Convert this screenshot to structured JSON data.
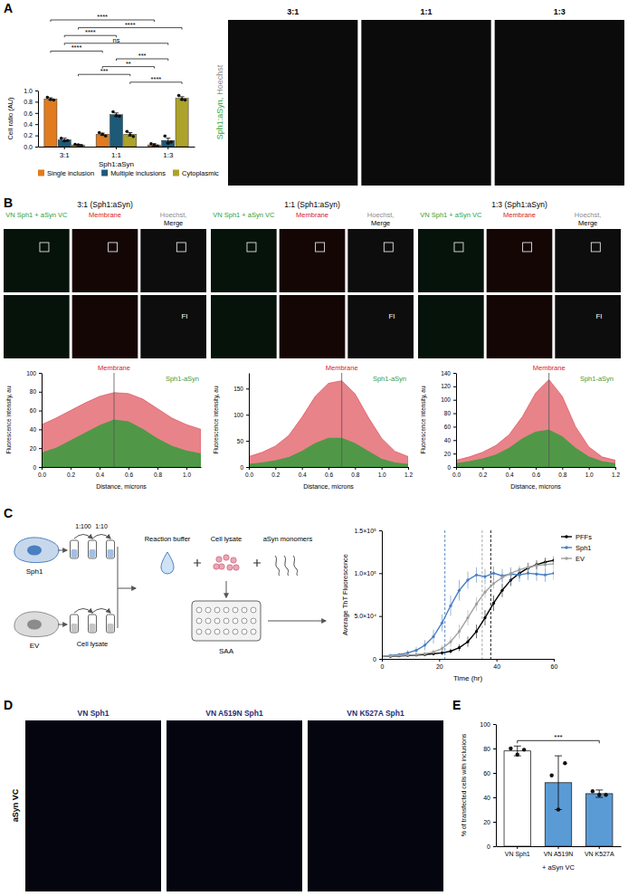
{
  "panel_labels": [
    "A",
    "B",
    "C",
    "D",
    "E"
  ],
  "a_images": {
    "labels": [
      "3:1",
      "1:1",
      "1:3"
    ],
    "stain": [
      {
        "text": "Sph1:aSyn,",
        "color": "#2fa83a"
      },
      {
        "text": "Hoechst",
        "color": "#8c8c8c"
      }
    ]
  },
  "b_images": [
    {
      "columns": [
        [
          {
            "text": "VN Sph1 + aSyn VC",
            "color": "#2e9e3a"
          }
        ],
        [
          {
            "text": "Membrane",
            "color": "#d7191c"
          }
        ],
        [
          {
            "text": "Hoechst,",
            "color": "#8c8c8c"
          },
          {
            "text": "Merge",
            "color": "#000000"
          }
        ]
      ],
      "inset": "FI"
    },
    {
      "columns": [
        [
          {
            "text": "VN Sph1 + aSyn VC",
            "color": "#2e9e3a"
          }
        ],
        [
          {
            "text": "Membrane",
            "color": "#d7191c"
          }
        ],
        [
          {
            "text": "Hoechst,",
            "color": "#8c8c8c"
          },
          {
            "text": "Merge",
            "color": "#000000"
          }
        ]
      ],
      "inset": "FI"
    },
    {
      "columns": [
        [
          {
            "text": "VN Sph1 + aSyn VC",
            "color": "#2e9e3a"
          }
        ],
        [
          {
            "text": "Membrane",
            "color": "#d7191c"
          }
        ],
        [
          {
            "text": "Hoechst,",
            "color": "#8c8c8c"
          },
          {
            "text": "Merge",
            "color": "#000000"
          }
        ]
      ],
      "inset": "FI"
    }
  ],
  "c_schematic": {
    "cells": [
      {
        "text": "Sph1",
        "color": "#4a7fc1"
      },
      {
        "text": "EV",
        "color": "#8c8c8c"
      }
    ],
    "dilutions": [
      "1:100",
      "1:10"
    ],
    "lysate": "Cell lysate",
    "components": [
      "Reaction buffer",
      "Cell lysate",
      "aSyn monomers"
    ],
    "assay": "SAA"
  },
  "d_images": {
    "labels": [
      "VN Sph1",
      "VN A519N Sph1",
      "VN K527A Sph1"
    ],
    "color": "#1f2f7a",
    "row_label": "aSyn VC"
  },
  "chart_data": [
    {
      "type": "bar",
      "categories": [
        "3:1",
        "1:1",
        "1:3"
      ],
      "x_label": "Sph1:aSyn",
      "y_label": "Cell ratio (AU)",
      "series": [
        {
          "name": "Single inclusion",
          "color": "#e07b1f",
          "values": [
            0.85,
            0.22,
            0.03
          ],
          "errors": [
            0.02,
            0.02,
            0.02
          ],
          "points": [
            [
              0.88,
              0.84,
              0.83
            ],
            [
              0.25,
              0.22,
              0.19
            ],
            [
              0.05,
              0.03,
              0.01
            ]
          ]
        },
        {
          "name": "Multiple inclusions",
          "color": "#1c5a78",
          "values": [
            0.12,
            0.57,
            0.11
          ],
          "errors": [
            0.03,
            0.03,
            0.04
          ],
          "points": [
            [
              0.15,
              0.1,
              0.11
            ],
            [
              0.62,
              0.55,
              0.54
            ],
            [
              0.19,
              0.06,
              0.08
            ]
          ]
        },
        {
          "name": "Cytoplasmic",
          "color": "#ada22a",
          "values": [
            0.03,
            0.22,
            0.86
          ],
          "errors": [
            0.01,
            0.03,
            0.03
          ],
          "points": [
            [
              0.04,
              0.03,
              0.02
            ],
            [
              0.27,
              0.21,
              0.18
            ],
            [
              0.91,
              0.84,
              0.83
            ]
          ]
        }
      ],
      "ylim": [
        0,
        1
      ],
      "yticks": [
        {
          "value": 0,
          "label": "0.0"
        },
        0.2,
        0.4,
        0.6,
        0.8,
        {
          "value": 1,
          "label": "1.0"
        }
      ],
      "legend": "bottom",
      "annotations": [
        {
          "text": "****",
          "from": [
            "3:1",
            "Single inclusion"
          ],
          "to": [
            "1:3",
            "Single inclusion"
          ]
        },
        {
          "text": "****",
          "from": [
            "3:1",
            "Cytoplasmic"
          ],
          "to": [
            "1:3",
            "Cytoplasmic"
          ]
        },
        {
          "text": "****",
          "from": [
            "3:1",
            "Multiple inclusions"
          ],
          "to": [
            "1:1",
            "Multiple inclusions"
          ]
        },
        {
          "text": "ns",
          "from": [
            "3:1",
            "Multiple inclusions"
          ],
          "to": [
            "1:3",
            "Multiple inclusions"
          ]
        },
        {
          "text": "****",
          "from": [
            "3:1",
            "Single inclusion"
          ],
          "to": [
            "1:1",
            "Single inclusion"
          ]
        },
        {
          "text": "***",
          "from": [
            "1:1",
            "Multiple inclusions"
          ],
          "to": [
            "1:3",
            "Multiple inclusions"
          ]
        },
        {
          "text": "**",
          "from": [
            "1:1",
            "Single inclusion"
          ],
          "to": [
            "1:3",
            "Single inclusion"
          ]
        },
        {
          "text": "***",
          "from": [
            "3:1",
            "Cytoplasmic"
          ],
          "to": [
            "1:1",
            "Cytoplasmic"
          ]
        },
        {
          "text": "****",
          "from": [
            "1:1",
            "Cytoplasmic"
          ],
          "to": [
            "1:3",
            "Cytoplasmic"
          ]
        }
      ]
    },
    {
      "type": "area",
      "title": "3:1 (Sph1:aSyn)",
      "x_label": "Distance, microns",
      "y_label": "Fluorescence intensity, au",
      "x": [
        0,
        0.1,
        0.2,
        0.3,
        0.4,
        0.5,
        0.6,
        0.7,
        0.8,
        0.9,
        1.0,
        1.1
      ],
      "series": [
        {
          "name": "Membrane",
          "color": "#e05a63",
          "values": [
            45,
            52,
            60,
            68,
            75,
            79,
            78,
            72,
            62,
            52,
            45,
            40
          ]
        },
        {
          "name": "Sph1-aSyn",
          "color": "#3f9a3f",
          "values": [
            15,
            20,
            28,
            36,
            44,
            50,
            48,
            40,
            30,
            22,
            17,
            14
          ]
        }
      ],
      "peak_x": 0.5,
      "xlim": [
        0,
        1.1
      ],
      "xticks": [
        {
          "value": 0,
          "label": "0.0"
        },
        0.2,
        0.4,
        0.6,
        0.8,
        {
          "value": 1,
          "label": "1.0"
        }
      ],
      "ylim": [
        0,
        100
      ],
      "yticks": [
        0,
        20,
        40,
        60,
        80,
        100
      ]
    },
    {
      "type": "area",
      "title": "1:1 (Sph1:aSyn)",
      "x_label": "Distance, microns",
      "y_label": "Fluorescence intensity, au",
      "x": [
        0,
        0.1,
        0.2,
        0.3,
        0.4,
        0.5,
        0.6,
        0.7,
        0.8,
        0.9,
        1.0,
        1.1,
        1.2
      ],
      "series": [
        {
          "name": "Membrane",
          "color": "#e05a63",
          "values": [
            20,
            28,
            40,
            60,
            95,
            135,
            160,
            165,
            140,
            95,
            55,
            30,
            20
          ]
        },
        {
          "name": "Sph1-aSyn",
          "color": "#3f9a3f",
          "values": [
            5,
            8,
            12,
            18,
            30,
            45,
            55,
            55,
            45,
            30,
            15,
            8,
            5
          ]
        }
      ],
      "peak_x": 0.7,
      "xlim": [
        0,
        1.2
      ],
      "xticks": [
        {
          "value": 0,
          "label": "0.0"
        },
        0.2,
        0.4,
        0.6,
        0.8,
        {
          "value": 1,
          "label": "1.0"
        },
        1.2
      ],
      "ylim": [
        0,
        180
      ],
      "yticks": [
        0,
        50,
        100,
        150
      ]
    },
    {
      "type": "area",
      "title": "1:3 (Sph1:aSyn)",
      "x_label": "Distance, microns",
      "y_label": "Fluorescence intensity, au",
      "x": [
        0,
        0.1,
        0.2,
        0.3,
        0.4,
        0.5,
        0.6,
        0.7,
        0.8,
        0.9,
        1.0,
        1.1,
        1.2
      ],
      "series": [
        {
          "name": "Membrane",
          "color": "#e05a63",
          "values": [
            10,
            15,
            22,
            32,
            48,
            75,
            110,
            130,
            105,
            60,
            30,
            15,
            10
          ]
        },
        {
          "name": "Sph1-aSyn",
          "color": "#3f9a3f",
          "values": [
            5,
            8,
            12,
            18,
            28,
            42,
            52,
            55,
            45,
            28,
            15,
            8,
            5
          ]
        }
      ],
      "peak_x": 0.7,
      "xlim": [
        0,
        1.2
      ],
      "xticks": [
        {
          "value": 0,
          "label": "0.0"
        },
        0.2,
        0.4,
        0.6,
        0.8,
        {
          "value": 1,
          "label": "1.0"
        },
        1.2
      ],
      "ylim": [
        0,
        140
      ],
      "yticks": [
        0,
        20,
        40,
        60,
        80,
        100,
        120,
        140
      ]
    },
    {
      "type": "line",
      "x_label": "Time (hr)",
      "y_label": "Average ThT Fluorescence",
      "x": [
        0,
        3,
        6,
        9,
        12,
        15,
        18,
        21,
        24,
        27,
        30,
        33,
        36,
        39,
        42,
        45,
        48,
        51,
        54,
        57,
        60
      ],
      "series": [
        {
          "name": "PFFs",
          "color": "#000000",
          "values": [
            3000,
            3000,
            3500,
            4000,
            4500,
            5000,
            6000,
            7000,
            9000,
            13000,
            20000,
            32000,
            48000,
            65000,
            80000,
            92000,
            100000,
            106000,
            110000,
            113000,
            115000
          ],
          "errors": [
            1000,
            1000,
            1000,
            1000,
            1500,
            1500,
            2000,
            2500,
            3000,
            4000,
            6000,
            8000,
            9000,
            9000,
            8000,
            7000,
            6000,
            6000,
            5000,
            5000,
            5000
          ],
          "threshold_x": 38
        },
        {
          "name": "Sph1",
          "color": "#4a7fc1",
          "values": [
            3000,
            4000,
            5000,
            7000,
            10000,
            16000,
            26000,
            42000,
            62000,
            80000,
            92000,
            98000,
            96000,
            100000,
            97000,
            99000,
            98000,
            100000,
            99000,
            98000,
            100000
          ],
          "errors": [
            1000,
            1500,
            2000,
            3000,
            4000,
            6000,
            8000,
            10000,
            12000,
            12000,
            10000,
            9000,
            9000,
            8000,
            8000,
            8000,
            8000,
            8000,
            8000,
            8000,
            8000
          ],
          "threshold_x": 22
        },
        {
          "name": "EV",
          "color": "#a0a0a0",
          "values": [
            3000,
            3500,
            4000,
            4500,
            5000,
            6000,
            8000,
            12000,
            20000,
            32000,
            48000,
            64000,
            78000,
            88000,
            95000,
            100000,
            104000,
            107000,
            109000,
            110000,
            111000
          ],
          "errors": [
            1000,
            1000,
            1000,
            1500,
            1500,
            2000,
            3000,
            4000,
            6000,
            8000,
            9000,
            8000,
            7000,
            6000,
            5000,
            5000,
            5000,
            4000,
            4000,
            4000,
            4000
          ],
          "threshold_x": 35
        }
      ],
      "marker": "circle",
      "legend": "right",
      "xlim": [
        0,
        60
      ],
      "xticks": [
        0,
        20,
        40,
        60
      ],
      "ylim": [
        0,
        150000
      ],
      "yticks": [
        0,
        {
          "value": 50000,
          "label": "5.0×10⁴"
        },
        {
          "value": 100000,
          "label": "1.0×10⁵"
        },
        {
          "value": 150000,
          "label": "1.5×10⁵"
        }
      ]
    },
    {
      "type": "bar",
      "categories": [
        "VN Sph1",
        "VN A519N",
        "VN K527A"
      ],
      "x_label": "+ aSyn VC",
      "y_label": "% of transfected cells with inclusions",
      "values": [
        78,
        52,
        43
      ],
      "errors": [
        4,
        22,
        3
      ],
      "points": [
        [
          80,
          75,
          79
        ],
        [
          58,
          30,
          68
        ],
        [
          45,
          42,
          42
        ]
      ],
      "colors": [
        "#ffffff",
        "#5b9bd5",
        "#5b9bd5"
      ],
      "ylim": [
        0,
        100
      ],
      "yticks": [
        0,
        20,
        40,
        60,
        80,
        100
      ],
      "annotations": [
        {
          "text": "***",
          "from": "VN Sph1",
          "to": "VN K527A"
        }
      ]
    }
  ]
}
